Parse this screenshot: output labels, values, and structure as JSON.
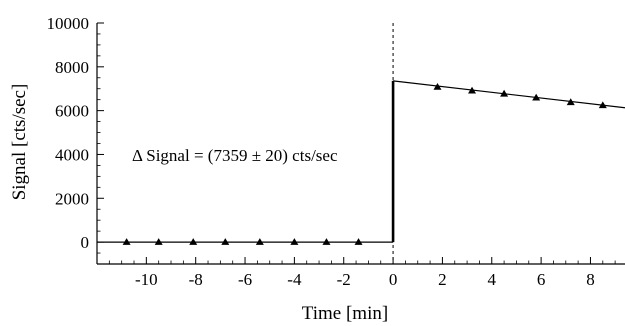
{
  "chart_data": {
    "type": "scatter",
    "xlabel": "Time [min]",
    "ylabel": "Signal [cts/sec]",
    "xlim": [
      -12,
      9.4
    ],
    "ylim": [
      -1000,
      10000
    ],
    "x_ticks": [
      -10,
      -8,
      -6,
      -4,
      -2,
      0,
      2,
      4,
      6,
      8
    ],
    "y_ticks": [
      0,
      2000,
      4000,
      6000,
      8000,
      10000
    ],
    "x_tick_labels": [
      "-10",
      "-8",
      "-6",
      "-4",
      "-2",
      "0",
      "2",
      "4",
      "6",
      "8"
    ],
    "y_tick_labels": [
      "0",
      "2000",
      "4000",
      "6000",
      "8000",
      "10000"
    ],
    "grid": false,
    "annotation": "Δ Signal = (7359 ± 20) cts/sec",
    "series": [
      {
        "marker": "triangle",
        "points": [
          {
            "x": -10.8,
            "y": 0
          },
          {
            "x": -9.5,
            "y": 0
          },
          {
            "x": -8.1,
            "y": 0
          },
          {
            "x": -6.8,
            "y": 0
          },
          {
            "x": -5.4,
            "y": 0
          },
          {
            "x": -4.0,
            "y": 0
          },
          {
            "x": -2.7,
            "y": 0
          },
          {
            "x": -1.4,
            "y": 0
          },
          {
            "x": 1.8,
            "y": 7080
          },
          {
            "x": 3.2,
            "y": 6910
          },
          {
            "x": 4.5,
            "y": 6770
          },
          {
            "x": 5.8,
            "y": 6590
          },
          {
            "x": 7.2,
            "y": 6380
          },
          {
            "x": 8.5,
            "y": 6240
          }
        ]
      }
    ],
    "fit_lines": [
      {
        "x": [
          -12,
          0
        ],
        "y": [
          0,
          0
        ]
      },
      {
        "x": [
          0,
          9.4
        ],
        "y": [
          7359,
          6130
        ]
      }
    ],
    "step_x": 0,
    "step_from_y": 0,
    "step_to_y": 7359,
    "vertical_reference_x": 0
  }
}
